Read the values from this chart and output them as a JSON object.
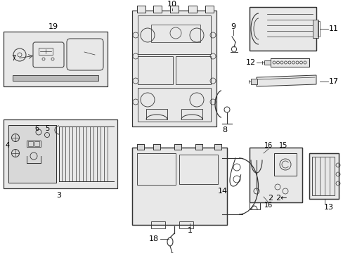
{
  "background_color": "#ffffff",
  "line_color": "#333333",
  "label_color": "#000000",
  "fig_width": 4.89,
  "fig_height": 3.6,
  "dpi": 100,
  "box_fill": "#e8e8e8",
  "box_fill2": "#d8d8d8"
}
